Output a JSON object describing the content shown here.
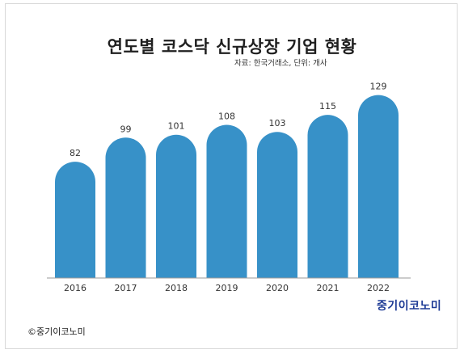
{
  "title": "연도별 코스닥 신규상장 기업 현황",
  "source": "자료: 한국거래소, 단위: 개사",
  "brand": "중기이코노미",
  "copyright": "©중기이코노미",
  "colors": {
    "bar": "#3791c8",
    "text": "#333333",
    "brand": "#1f3c96"
  },
  "chart_data": {
    "type": "bar",
    "title": "연도별 코스닥 신규상장 기업 현황",
    "categories": [
      "2016",
      "2017",
      "2018",
      "2019",
      "2020",
      "2021",
      "2022"
    ],
    "values": [
      82,
      99,
      101,
      108,
      103,
      115,
      129
    ],
    "unit": "개사",
    "ylim": [
      0,
      140
    ],
    "grid": false,
    "legend": "none"
  }
}
